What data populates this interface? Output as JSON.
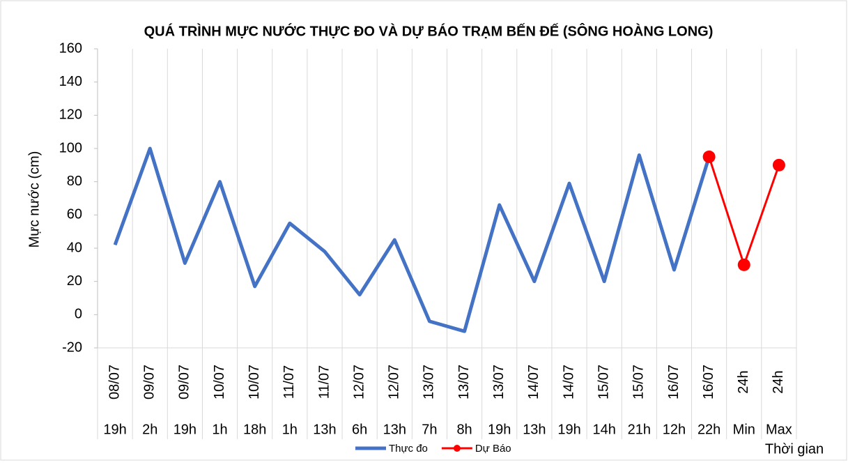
{
  "chart_data": {
    "type": "line",
    "title": "QUÁ TRÌNH MỰC NƯỚC THỰC ĐO VÀ DỰ BÁO TRẠM BẾN ĐẾ (SÔNG HOÀNG LONG)",
    "y_label": "Mực nước (cm)",
    "x_label": "Thời gian",
    "categories": [
      [
        "08/07",
        "19h"
      ],
      [
        "09/07",
        "2h"
      ],
      [
        "09/07",
        "19h"
      ],
      [
        "10/07",
        "1h"
      ],
      [
        "10/07",
        "18h"
      ],
      [
        "11/07",
        "1h"
      ],
      [
        "11/07",
        "13h"
      ],
      [
        "12/07",
        "6h"
      ],
      [
        "12/07",
        "13h"
      ],
      [
        "13/07",
        "7h"
      ],
      [
        "13/07",
        "8h"
      ],
      [
        "13/07",
        "19h"
      ],
      [
        "14/07",
        "13h"
      ],
      [
        "14/07",
        "19h"
      ],
      [
        "15/07",
        "14h"
      ],
      [
        "15/07",
        "21h"
      ],
      [
        "16/07",
        "12h"
      ],
      [
        "16/07",
        "22h"
      ],
      [
        "24h",
        "Min"
      ],
      [
        "24h",
        "Max"
      ]
    ],
    "series": [
      {
        "name": "Thực đo",
        "color": "#4472c4",
        "marker": false,
        "values": [
          42,
          100,
          31,
          80,
          17,
          55,
          38,
          12,
          45,
          -4,
          -10,
          66,
          20,
          79,
          20,
          96,
          27,
          95,
          null,
          null
        ]
      },
      {
        "name": "Dự Báo",
        "color": "#ff0000",
        "marker": true,
        "values": [
          null,
          null,
          null,
          null,
          null,
          null,
          null,
          null,
          null,
          null,
          null,
          null,
          null,
          null,
          null,
          null,
          null,
          95,
          30,
          90
        ]
      }
    ],
    "ylim": [
      -20,
      160
    ],
    "yticks": [
      -20,
      0,
      20,
      40,
      60,
      80,
      100,
      120,
      140,
      160
    ],
    "legend": "bottom"
  }
}
